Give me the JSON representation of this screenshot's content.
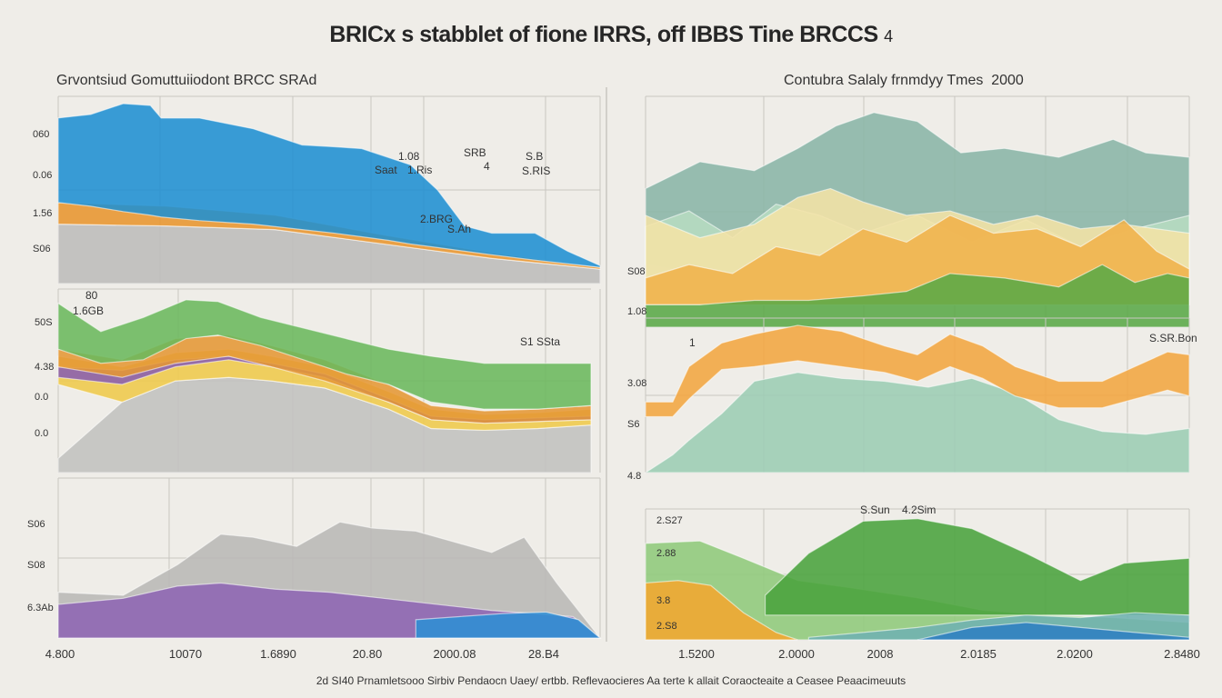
{
  "page": {
    "title": "BRICx s stabblet of fione IRRS, off IBBS Tine BRCCS",
    "title_suffix": "4",
    "footer": "2d SI40 Prnamletsooo Sirbiv Pendaocn Uaey/ ertbb. Reflevaocieres Aa terte k allait Coraocteaite a Ceasee Peaacimeuuts"
  },
  "chart_data": [
    {
      "id": "left-top",
      "type": "area",
      "title": "Grvontsiud Gomuttuiiodont BRCC SRAd",
      "xlim": [
        0,
        100
      ],
      "ylim": [
        0,
        100
      ],
      "ytick_labels": [
        "060",
        "0.06",
        "1.56",
        "S06"
      ],
      "annotations": [
        "1.08",
        "Saat",
        "1.Ris",
        "SRB",
        "4",
        "S.B",
        "S.RIS",
        "2.BRG",
        "S.Ah"
      ],
      "series": [
        {
          "name": "gray",
          "color": "#bdbcb9",
          "x": [
            0,
            20,
            40,
            60,
            80,
            100
          ],
          "lower": [
            0,
            0,
            0,
            0,
            0,
            0
          ],
          "upper": [
            33,
            32,
            30,
            22,
            14,
            8
          ]
        },
        {
          "name": "orange",
          "color": "#e8952e",
          "x": [
            0,
            20,
            40,
            60,
            80,
            100
          ],
          "lower": [
            33,
            32,
            30,
            22,
            14,
            8
          ],
          "upper": [
            45,
            43,
            38,
            27,
            17,
            9
          ]
        },
        {
          "name": "blue",
          "color": "#1f8fd1",
          "x": [
            0,
            6,
            12,
            17,
            19,
            26,
            36,
            45,
            51,
            56,
            61,
            65,
            70,
            75,
            80,
            88,
            94,
            100
          ],
          "lower": [
            45,
            43,
            40,
            38,
            37,
            35,
            33,
            30,
            28,
            26,
            24,
            22,
            20,
            18,
            16,
            13,
            11,
            9
          ],
          "upper": [
            92,
            94,
            100,
            99,
            92,
            92,
            86,
            77,
            76,
            75,
            70,
            66,
            52,
            32,
            28,
            28,
            18,
            10
          ]
        }
      ]
    },
    {
      "id": "left-mid",
      "type": "area",
      "xlim": [
        0,
        100
      ],
      "ylim": [
        0,
        100
      ],
      "ytick_labels": [
        "50S",
        "4.38",
        "0.0",
        "0.0"
      ],
      "annotations": [
        "80",
        "1.6GB",
        "S1 SSta"
      ],
      "series": [
        {
          "name": "gray",
          "color": "#c2c1be",
          "x": [
            0,
            12,
            22,
            32,
            40,
            50,
            62,
            70,
            80,
            90,
            100
          ],
          "lower": [
            0,
            0,
            0,
            0,
            0,
            0,
            0,
            0,
            0,
            0,
            0
          ],
          "upper": [
            8,
            40,
            52,
            54,
            52,
            48,
            36,
            25,
            24,
            25,
            27
          ]
        },
        {
          "name": "yellow",
          "color": "#efc94a",
          "x": [
            0,
            12,
            22,
            32,
            40,
            50,
            62,
            70,
            80,
            90,
            100
          ],
          "lower": [
            50,
            40,
            52,
            54,
            52,
            48,
            36,
            25,
            24,
            25,
            27
          ],
          "upper": [
            66,
            60,
            68,
            70,
            66,
            60,
            46,
            36,
            33,
            34,
            36
          ]
        },
        {
          "name": "purple",
          "color": "#8a5fb0",
          "x": [
            0,
            12,
            22,
            32,
            40,
            50,
            62,
            70,
            80,
            90,
            100
          ],
          "lower": [
            54,
            50,
            60,
            64,
            60,
            54,
            40,
            30,
            28,
            29,
            30
          ],
          "upper": [
            60,
            58,
            64,
            66,
            62,
            56,
            42,
            32,
            30,
            31,
            32
          ]
        },
        {
          "name": "orange",
          "color": "#e59734",
          "x": [
            0,
            12,
            22,
            32,
            40,
            50,
            62,
            70,
            80,
            90,
            100
          ],
          "lower": [
            60,
            54,
            62,
            66,
            60,
            52,
            40,
            30,
            28,
            29,
            30
          ],
          "upper": [
            70,
            64,
            76,
            78,
            72,
            64,
            50,
            38,
            35,
            36,
            38
          ]
        },
        {
          "name": "green",
          "color": "#6bb85c",
          "x": [
            0,
            8,
            16,
            24,
            30,
            38,
            46,
            54,
            62,
            70,
            80,
            90,
            100
          ],
          "lower": [
            70,
            62,
            64,
            76,
            78,
            72,
            64,
            56,
            50,
            40,
            36,
            36,
            38
          ],
          "upper": [
            96,
            80,
            88,
            98,
            97,
            88,
            82,
            76,
            70,
            66,
            62,
            62,
            62
          ]
        }
      ]
    },
    {
      "id": "left-bottom",
      "type": "area",
      "xlim": [
        0,
        100
      ],
      "ylim": [
        0,
        100
      ],
      "ytick_labels": [
        "S06",
        "S08",
        "6.3Ab"
      ],
      "xtick_labels": [
        "4.800",
        "10070",
        "1.6890",
        "20.80",
        "2000.08",
        "28.B4"
      ],
      "series": [
        {
          "name": "gray",
          "color": "#b9b8b5",
          "x": [
            0,
            12,
            22,
            30,
            36,
            44,
            52,
            58,
            66,
            74,
            80,
            86,
            92,
            100
          ],
          "lower": [
            0,
            0,
            0,
            0,
            0,
            0,
            0,
            0,
            0,
            0,
            0,
            0,
            0,
            0
          ],
          "upper": [
            30,
            28,
            48,
            68,
            66,
            60,
            76,
            72,
            70,
            62,
            56,
            66,
            36,
            0
          ]
        },
        {
          "name": "purple",
          "color": "#8d65b3",
          "x": [
            0,
            12,
            22,
            30,
            40,
            50,
            60,
            70,
            80,
            88,
            95,
            100
          ],
          "lower": [
            0,
            0,
            0,
            0,
            0,
            0,
            0,
            0,
            0,
            0,
            0,
            0
          ],
          "upper": [
            22,
            26,
            34,
            36,
            32,
            30,
            26,
            22,
            18,
            16,
            14,
            0
          ]
        },
        {
          "name": "blue",
          "color": "#2e8ed4",
          "x": [
            66,
            74,
            82,
            90,
            96,
            100
          ],
          "lower": [
            0,
            0,
            0,
            0,
            0,
            0
          ],
          "upper": [
            12,
            14,
            16,
            17,
            12,
            0
          ]
        }
      ]
    },
    {
      "id": "right-top",
      "type": "area",
      "title": "Contubra Salaly frnmdyy Tmes",
      "title_suffix": "2000",
      "xlim": [
        0,
        100
      ],
      "ylim": [
        0,
        100
      ],
      "ytick_labels": [
        "S08",
        "1.08"
      ],
      "series": [
        {
          "name": "teal",
          "color": "#8ab5a6",
          "x": [
            0,
            10,
            20,
            28,
            35,
            42,
            50,
            58,
            66,
            76,
            86,
            92,
            100
          ],
          "lower": [
            28,
            24,
            22,
            20,
            18,
            16,
            15,
            14,
            14,
            14,
            16,
            16,
            14
          ],
          "upper": [
            62,
            74,
            70,
            80,
            90,
            96,
            92,
            78,
            80,
            76,
            84,
            78,
            76
          ]
        },
        {
          "name": "mint",
          "color": "#b7dcc2",
          "x": [
            0,
            8,
            16,
            24,
            32,
            40,
            50,
            60,
            70,
            80,
            90,
            100
          ],
          "lower": [
            10,
            10,
            10,
            10,
            10,
            10,
            10,
            10,
            10,
            10,
            10,
            10
          ],
          "upper": [
            45,
            52,
            40,
            55,
            50,
            42,
            50,
            38,
            48,
            36,
            44,
            50
          ]
        },
        {
          "name": "cream",
          "color": "#f4e2a6",
          "x": [
            0,
            10,
            20,
            28,
            34,
            40,
            48,
            56,
            64,
            72,
            80,
            88,
            100
          ],
          "lower": [
            10,
            10,
            10,
            10,
            10,
            10,
            10,
            10,
            10,
            10,
            10,
            10,
            10
          ],
          "upper": [
            50,
            40,
            46,
            58,
            62,
            56,
            50,
            52,
            46,
            50,
            44,
            46,
            42
          ]
        },
        {
          "name": "orange",
          "color": "#f0b24a",
          "x": [
            0,
            8,
            16,
            24,
            32,
            40,
            48,
            56,
            64,
            72,
            80,
            88,
            94,
            100
          ],
          "lower": [
            10,
            10,
            10,
            10,
            10,
            10,
            10,
            10,
            10,
            10,
            10,
            10,
            10,
            10
          ],
          "upper": [
            22,
            28,
            24,
            36,
            32,
            44,
            38,
            50,
            42,
            44,
            36,
            48,
            34,
            26
          ]
        },
        {
          "name": "green",
          "color": "#5aa847",
          "x": [
            0,
            10,
            20,
            30,
            40,
            48,
            56,
            66,
            76,
            84,
            90,
            96,
            100
          ],
          "lower": [
            0,
            0,
            0,
            0,
            0,
            0,
            0,
            0,
            0,
            0,
            0,
            0,
            0
          ],
          "upper": [
            10,
            10,
            12,
            12,
            14,
            16,
            24,
            22,
            18,
            28,
            20,
            24,
            22
          ]
        }
      ]
    },
    {
      "id": "right-mid",
      "type": "area",
      "xlim": [
        0,
        100
      ],
      "ylim": [
        0,
        100
      ],
      "ytick_labels": [
        "3.08",
        "S6",
        "4.8"
      ],
      "annotations": [
        "1",
        "S.SR.Bon"
      ],
      "series": [
        {
          "name": "teal",
          "color": "#9ccdb3",
          "x": [
            0,
            5,
            8,
            14,
            20,
            28,
            36,
            44,
            52,
            60,
            68,
            76,
            84,
            92,
            100
          ],
          "lower": [
            0,
            0,
            0,
            0,
            0,
            0,
            0,
            0,
            0,
            0,
            0,
            0,
            0,
            0,
            0
          ],
          "upper": [
            0,
            12,
            22,
            40,
            62,
            68,
            64,
            62,
            58,
            64,
            54,
            36,
            28,
            26,
            30
          ]
        },
        {
          "name": "orange",
          "color": "#f2a640",
          "x": [
            0,
            5,
            8,
            14,
            20,
            28,
            36,
            44,
            50,
            56,
            62,
            68,
            76,
            84,
            90,
            96,
            100
          ],
          "lower": [
            38,
            38,
            50,
            70,
            72,
            76,
            72,
            68,
            62,
            72,
            64,
            52,
            44,
            44,
            50,
            56,
            52
          ],
          "upper": [
            48,
            48,
            72,
            88,
            94,
            100,
            96,
            86,
            80,
            94,
            86,
            72,
            62,
            62,
            72,
            82,
            80
          ]
        }
      ]
    },
    {
      "id": "right-bottom",
      "type": "area",
      "xlim": [
        0,
        100
      ],
      "ylim": [
        0,
        100
      ],
      "ytick_labels": [
        "2.S27",
        "2.88",
        "3.8",
        "2.S8"
      ],
      "annotations": [
        "S.Sun",
        "4.2Sim"
      ],
      "xtick_labels": [
        "1.5200",
        "2.0000",
        "2008",
        "2.0185",
        "2.0200",
        "2.8480"
      ],
      "series": [
        {
          "name": "lightgreen",
          "color": "#8fca7a",
          "x": [
            0,
            10,
            18,
            28,
            38,
            50,
            62,
            74,
            86,
            100
          ],
          "lower": [
            0,
            0,
            0,
            0,
            0,
            0,
            0,
            0,
            0,
            0
          ],
          "upper": [
            78,
            80,
            66,
            48,
            42,
            34,
            24,
            20,
            18,
            14
          ]
        },
        {
          "name": "orange",
          "color": "#f2a72f",
          "x": [
            0,
            6,
            12,
            18,
            24,
            28
          ],
          "lower": [
            0,
            0,
            0,
            0,
            0,
            0
          ],
          "upper": [
            46,
            48,
            44,
            22,
            6,
            0
          ]
        },
        {
          "name": "green",
          "color": "#4aa33c",
          "x": [
            22,
            30,
            40,
            50,
            60,
            70,
            80,
            88,
            94,
            100
          ],
          "lower": [
            20,
            20,
            20,
            20,
            20,
            20,
            20,
            20,
            20,
            20
          ],
          "upper": [
            36,
            70,
            96,
            98,
            90,
            70,
            48,
            62,
            64,
            66
          ]
        },
        {
          "name": "teal",
          "color": "#6fb2b0",
          "x": [
            30,
            40,
            50,
            60,
            70,
            80,
            90,
            100
          ],
          "lower": [
            0,
            0,
            0,
            0,
            0,
            0,
            0,
            0
          ],
          "upper": [
            2,
            6,
            10,
            16,
            20,
            18,
            22,
            20
          ]
        },
        {
          "name": "blue",
          "color": "#2f7fc1",
          "x": [
            50,
            60,
            70,
            80,
            90,
            100
          ],
          "lower": [
            0,
            0,
            0,
            0,
            0,
            0
          ],
          "upper": [
            0,
            10,
            14,
            10,
            6,
            2
          ]
        }
      ]
    }
  ]
}
